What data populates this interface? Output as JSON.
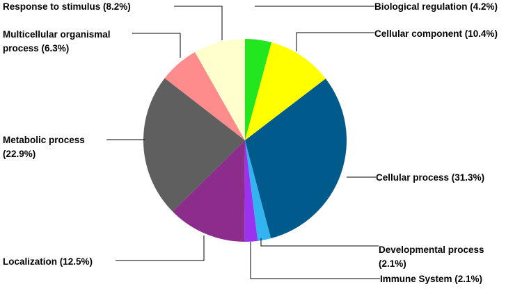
{
  "chart_data": {
    "type": "pie",
    "title": "",
    "start_angle_deg": 0,
    "direction": "clockwise",
    "slices": [
      {
        "label": "Biological regulation (4.2%)",
        "lines": [
          "Biological regulation (4.2%)"
        ],
        "value": 4.2,
        "color": "#22e61e"
      },
      {
        "label": "Cellular component (10.4%)",
        "lines": [
          "Cellular component (10.4%)"
        ],
        "value": 10.4,
        "color": "#ffff00"
      },
      {
        "label": "Cellular process (31.3%)",
        "lines": [
          "Cellular process (31.3%)"
        ],
        "value": 31.3,
        "color": "#005a8c"
      },
      {
        "label": "Developmental process (2.1%)",
        "lines": [
          "Developmental process",
          "(2.1%)"
        ],
        "value": 2.1,
        "color": "#32b4f0"
      },
      {
        "label": "Immune System (2.1%)",
        "lines": [
          "Immune System (2.1%)"
        ],
        "value": 2.1,
        "color": "#9b32f0"
      },
      {
        "label": "Localization (12.5%)",
        "lines": [
          "Localization (12.5%)"
        ],
        "value": 12.5,
        "color": "#8c2d8c"
      },
      {
        "label": "Metabolic process (22.9%)",
        "lines": [
          "Metabolic process",
          "(22.9%)"
        ],
        "value": 22.9,
        "color": "#5f5f5f"
      },
      {
        "label": "Multicellular organismal process (6.3%)",
        "lines": [
          "Multicellular organismal",
          "process (6.3%)"
        ],
        "value": 6.3,
        "color": "#ff8c8c"
      },
      {
        "label": "Response to stimulus (8.2%)",
        "lines": [
          "Response to stimulus (8.2%)"
        ],
        "value": 8.2,
        "color": "#ffffcd"
      }
    ]
  }
}
